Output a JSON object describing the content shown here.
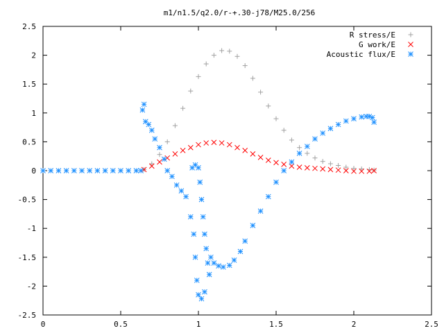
{
  "chart_data": {
    "type": "scatter",
    "title": "m1/n1.5/q2.0/r-+.30-j78/M25.0/256",
    "xlabel": "",
    "ylabel": "",
    "xlim": [
      0,
      2.5
    ],
    "ylim": [
      -2.5,
      2.5
    ],
    "x_ticks": [
      "0",
      "0.5",
      "1",
      "1.5",
      "2",
      "2.5"
    ],
    "y_ticks": [
      "2.5",
      "2",
      "1.5",
      "1",
      "0.5",
      "0",
      "-0.5",
      "-1",
      "-1.5",
      "-2",
      "-2.5"
    ],
    "grid": false,
    "legend_position": "top-right",
    "series": [
      {
        "name": "R stress/E",
        "marker": "plus",
        "color": "#a0a0a0",
        "points": [
          [
            0.65,
            0.02
          ],
          [
            0.7,
            0.12
          ],
          [
            0.75,
            0.28
          ],
          [
            0.8,
            0.5
          ],
          [
            0.85,
            0.78
          ],
          [
            0.9,
            1.08
          ],
          [
            0.95,
            1.38
          ],
          [
            1.0,
            1.63
          ],
          [
            1.05,
            1.85
          ],
          [
            1.1,
            2.0
          ],
          [
            1.15,
            2.08
          ],
          [
            1.2,
            2.07
          ],
          [
            1.25,
            1.98
          ],
          [
            1.3,
            1.82
          ],
          [
            1.35,
            1.6
          ],
          [
            1.4,
            1.36
          ],
          [
            1.45,
            1.12
          ],
          [
            1.5,
            0.9
          ],
          [
            1.55,
            0.7
          ],
          [
            1.6,
            0.53
          ],
          [
            1.65,
            0.4
          ],
          [
            1.7,
            0.3
          ],
          [
            1.75,
            0.22
          ],
          [
            1.8,
            0.16
          ],
          [
            1.85,
            0.12
          ],
          [
            1.9,
            0.09
          ],
          [
            1.95,
            0.06
          ],
          [
            2.0,
            0.04
          ],
          [
            2.05,
            0.03
          ],
          [
            2.1,
            0.02
          ],
          [
            2.13,
            0.01
          ]
        ]
      },
      {
        "name": "G work/E",
        "marker": "cross",
        "color": "#ff0000",
        "points": [
          [
            0.65,
            0.02
          ],
          [
            0.7,
            0.08
          ],
          [
            0.75,
            0.15
          ],
          [
            0.8,
            0.22
          ],
          [
            0.85,
            0.29
          ],
          [
            0.9,
            0.35
          ],
          [
            0.95,
            0.4
          ],
          [
            1.0,
            0.45
          ],
          [
            1.05,
            0.48
          ],
          [
            1.1,
            0.49
          ],
          [
            1.15,
            0.48
          ],
          [
            1.2,
            0.45
          ],
          [
            1.25,
            0.4
          ],
          [
            1.3,
            0.35
          ],
          [
            1.35,
            0.29
          ],
          [
            1.4,
            0.23
          ],
          [
            1.45,
            0.18
          ],
          [
            1.5,
            0.14
          ],
          [
            1.55,
            0.11
          ],
          [
            1.6,
            0.08
          ],
          [
            1.65,
            0.06
          ],
          [
            1.7,
            0.05
          ],
          [
            1.75,
            0.04
          ],
          [
            1.8,
            0.03
          ],
          [
            1.85,
            0.02
          ],
          [
            1.9,
            0.01
          ],
          [
            1.95,
            0.0
          ],
          [
            2.0,
            -0.01
          ],
          [
            2.05,
            -0.01
          ],
          [
            2.1,
            -0.01
          ],
          [
            2.13,
            0.0
          ]
        ]
      },
      {
        "name": "Acoustic flux/E",
        "marker": "star",
        "color": "#1e90ff",
        "points": [
          [
            0.0,
            0.0
          ],
          [
            0.05,
            0.0
          ],
          [
            0.1,
            0.0
          ],
          [
            0.15,
            0.0
          ],
          [
            0.2,
            0.0
          ],
          [
            0.25,
            0.0
          ],
          [
            0.3,
            0.0
          ],
          [
            0.35,
            0.0
          ],
          [
            0.4,
            0.0
          ],
          [
            0.45,
            0.0
          ],
          [
            0.5,
            0.0
          ],
          [
            0.55,
            0.0
          ],
          [
            0.6,
            0.0
          ],
          [
            0.63,
            0.0
          ],
          [
            0.64,
            1.05
          ],
          [
            0.65,
            1.15
          ],
          [
            0.66,
            0.85
          ],
          [
            0.68,
            0.8
          ],
          [
            0.7,
            0.7
          ],
          [
            0.72,
            0.55
          ],
          [
            0.75,
            0.4
          ],
          [
            0.78,
            0.2
          ],
          [
            0.8,
            0.0
          ],
          [
            0.83,
            -0.1
          ],
          [
            0.86,
            -0.25
          ],
          [
            0.89,
            -0.35
          ],
          [
            0.92,
            -0.45
          ],
          [
            0.95,
            -0.8
          ],
          [
            0.97,
            -1.1
          ],
          [
            0.98,
            -1.5
          ],
          [
            0.99,
            -1.9
          ],
          [
            1.0,
            -2.15
          ],
          [
            1.02,
            -2.22
          ],
          [
            1.04,
            -2.1
          ],
          [
            0.96,
            0.05
          ],
          [
            0.98,
            0.1
          ],
          [
            1.0,
            0.05
          ],
          [
            1.01,
            -0.2
          ],
          [
            1.02,
            -0.5
          ],
          [
            1.03,
            -0.8
          ],
          [
            1.04,
            -1.1
          ],
          [
            1.05,
            -1.35
          ],
          [
            1.06,
            -1.6
          ],
          [
            1.07,
            -1.8
          ],
          [
            1.08,
            -1.5
          ],
          [
            1.1,
            -1.6
          ],
          [
            1.13,
            -1.65
          ],
          [
            1.16,
            -1.67
          ],
          [
            1.2,
            -1.64
          ],
          [
            1.23,
            -1.55
          ],
          [
            1.27,
            -1.4
          ],
          [
            1.3,
            -1.22
          ],
          [
            1.35,
            -0.95
          ],
          [
            1.4,
            -0.7
          ],
          [
            1.45,
            -0.45
          ],
          [
            1.5,
            -0.2
          ],
          [
            1.55,
            0.0
          ],
          [
            1.6,
            0.15
          ],
          [
            1.65,
            0.3
          ],
          [
            1.7,
            0.42
          ],
          [
            1.75,
            0.55
          ],
          [
            1.8,
            0.65
          ],
          [
            1.85,
            0.73
          ],
          [
            1.9,
            0.8
          ],
          [
            1.95,
            0.86
          ],
          [
            2.0,
            0.9
          ],
          [
            2.05,
            0.93
          ],
          [
            2.08,
            0.94
          ],
          [
            2.1,
            0.94
          ],
          [
            2.12,
            0.92
          ],
          [
            2.13,
            0.84
          ]
        ]
      }
    ]
  }
}
